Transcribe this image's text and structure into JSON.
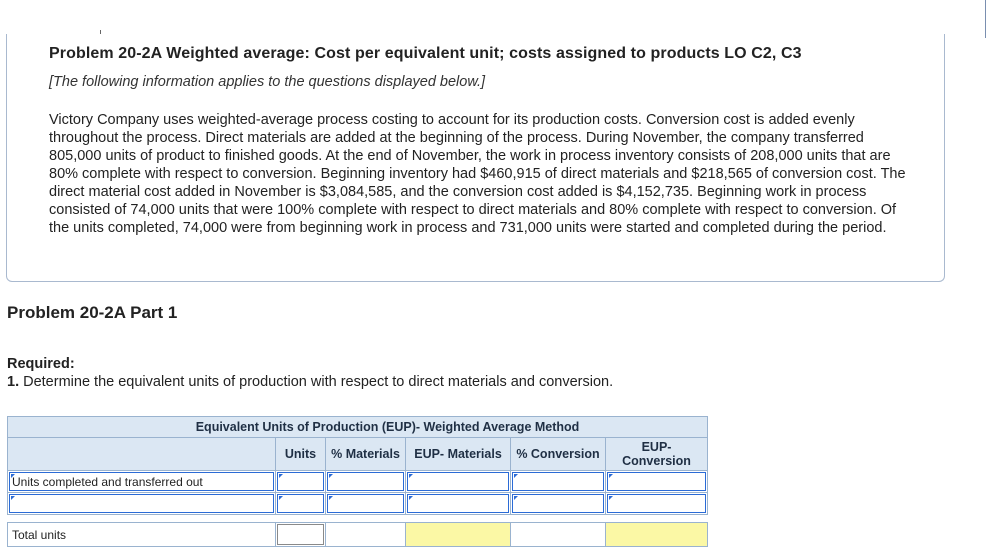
{
  "problem": {
    "title": "Problem 20-2A Weighted average: Cost per equivalent unit; costs assigned to products LO C2, C3",
    "note": "[The following information applies to the questions displayed below.]",
    "body": "Victory Company uses weighted-average process costing to account for its production costs. Conversion cost is added evenly throughout the process. Direct materials are added at the beginning of the process. During November, the company transferred 805,000 units of product to finished goods. At the end of November, the work in process inventory consists of 208,000 units that are 80% complete with respect to conversion. Beginning inventory had $460,915 of direct materials and $218,565 of conversion cost. The direct material cost added in November is $3,084,585, and the conversion cost added is $4,152,735. Beginning work in process consisted of 74,000 units that were 100% complete with respect to direct materials and 80% complete with respect to conversion. Of the units completed, 74,000 were from beginning work in process and 731,000 units were started and completed during the period."
  },
  "part": {
    "title": "Problem 20-2A Part 1",
    "required_label": "Required:",
    "required_number": "1.",
    "required_text": " Determine the equivalent units of production with respect to direct materials and conversion."
  },
  "table": {
    "title": "Equivalent Units of Production (EUP)- Weighted Average Method",
    "headers": [
      "Units",
      "% Materials",
      "EUP- Materials",
      "% Conversion",
      "EUP-\nConversion"
    ],
    "rows": [
      {
        "label": "Units completed and transferred out",
        "values": [
          "",
          "",
          "",
          "",
          ""
        ]
      },
      {
        "label": "",
        "values": [
          "",
          "",
          "",
          "",
          ""
        ]
      }
    ],
    "total_label": "Total units",
    "highlight_color": "#fbf8a5"
  }
}
